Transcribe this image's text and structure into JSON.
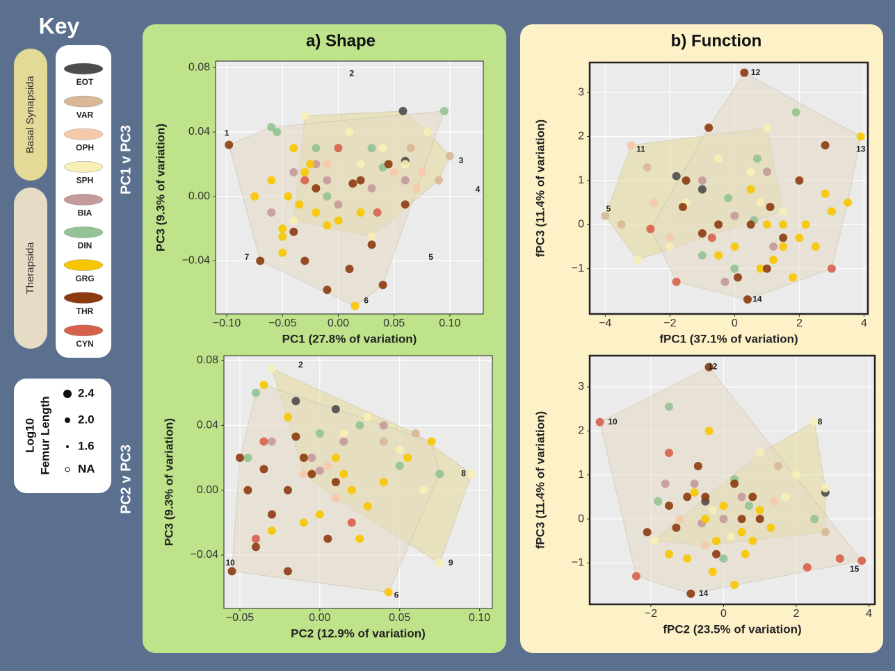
{
  "key": {
    "title": "Key",
    "clades": [
      {
        "name": "Basal Synapsida",
        "color": "#e3da98",
        "members": [
          "EOT",
          "VAR",
          "OPH",
          "SPH"
        ]
      },
      {
        "name": "Therapsida",
        "color": "#e6dbc4",
        "members": [
          "BIA",
          "DIN",
          "GRG",
          "THR",
          "CYN"
        ]
      }
    ],
    "groups": [
      {
        "name": "EOT",
        "color": "#4d4d4d"
      },
      {
        "name": "VAR",
        "color": "#d8b896"
      },
      {
        "name": "OPH",
        "color": "#f6c9ab"
      },
      {
        "name": "SPH",
        "color": "#f7efb5"
      },
      {
        "name": "BIA",
        "color": "#c49a9a"
      },
      {
        "name": "DIN",
        "color": "#93c294"
      },
      {
        "name": "GRG",
        "color": "#f7c600"
      },
      {
        "name": "THR",
        "color": "#8c3b10"
      },
      {
        "name": "CYN",
        "color": "#d7604b"
      }
    ],
    "size_title": [
      "Log10",
      "Femur Length"
    ],
    "sizes": [
      2.4,
      {
        "value": 2,
        "label": "2.0"
      },
      1.6
    ],
    "size_na": "NA"
  },
  "rows": [
    "PC1 v PC3",
    "PC2 v PC3"
  ],
  "panels": [
    {
      "title": "a) Shape"
    },
    {
      "title": "b) Function"
    }
  ],
  "chart_data": [
    {
      "type": "scatter",
      "xlabel": "PC1 (27.8% of variation)",
      "ylabel": "PC3 (9.3% of variation)",
      "xlim": [
        -0.11,
        0.13
      ],
      "ylim": [
        -0.073,
        0.084
      ],
      "grid": true,
      "xticks": [
        {
          "value": -0.1,
          "label": "−0.10"
        },
        {
          "value": -0.05,
          "label": "−0.05"
        },
        {
          "value": 0,
          "label": "0.00"
        },
        {
          "value": 0.05,
          "label": "0.05"
        },
        {
          "value": 0.1,
          "label": "0.10"
        }
      ],
      "yticks": [
        {
          "value": -0.04,
          "label": "−0.04"
        },
        {
          "value": 0,
          "label": "0.00"
        },
        {
          "value": 0.04,
          "label": "0.04"
        },
        {
          "value": 0.08,
          "label": "0.08"
        }
      ],
      "series": [
        {
          "name": "EOT",
          "color": "#4d4d4d",
          "x": [
            0.06,
            0.058
          ],
          "y": [
            0.022,
            0.053
          ]
        },
        {
          "name": "VAR",
          "color": "#d8b896",
          "x": [
            0.09,
            0.1,
            0.065
          ],
          "y": [
            0.01,
            0.025,
            0.03
          ]
        },
        {
          "name": "OPH",
          "color": "#f6c9ab",
          "x": [
            0.07,
            0.075,
            0.05,
            -0.01
          ],
          "y": [
            0.005,
            0.015,
            0.015,
            0.02
          ]
        },
        {
          "name": "SPH",
          "color": "#f7efb5",
          "x": [
            0.01,
            -0.03,
            0.02,
            0.06,
            0.04,
            -0.04,
            0.08,
            0.03
          ],
          "y": [
            0.04,
            0.05,
            0.02,
            0.02,
            0.03,
            -0.015,
            0.04,
            -0.025
          ]
        },
        {
          "name": "BIA",
          "color": "#c49a9a",
          "x": [
            -0.04,
            -0.02,
            0,
            0.03,
            -0.06,
            -0.01,
            0.06
          ],
          "y": [
            0.015,
            0.02,
            -0.005,
            0.005,
            -0.01,
            0.01,
            0.01
          ]
        },
        {
          "name": "DIN",
          "color": "#93c294",
          "x": [
            -0.055,
            -0.02,
            -0.01,
            0.03,
            0.04,
            0.095,
            -0.06
          ],
          "y": [
            0.04,
            0.03,
            0,
            0.03,
            0.018,
            0.053,
            0.043
          ]
        },
        {
          "name": "GRG",
          "color": "#f7c600",
          "x": [
            -0.06,
            -0.05,
            -0.045,
            -0.03,
            -0.02,
            -0.01,
            -0.05,
            -0.04,
            -0.075,
            -0.025,
            0,
            0.02,
            0.015,
            -0.035,
            -0.05
          ],
          "y": [
            0.01,
            -0.02,
            0,
            0.015,
            -0.01,
            -0.018,
            -0.035,
            0.03,
            0,
            0.02,
            -0.015,
            -0.01,
            -0.068,
            -0.005,
            -0.025
          ]
        },
        {
          "name": "THR",
          "color": "#8c3b10",
          "x": [
            -0.098,
            -0.07,
            -0.03,
            -0.04,
            -0.02,
            0.02,
            0.03,
            0.01,
            0.04,
            -0.01,
            0.045,
            0.06,
            0.013
          ],
          "y": [
            0.032,
            -0.04,
            -0.04,
            -0.022,
            0.005,
            0.01,
            -0.03,
            -0.045,
            -0.055,
            -0.058,
            0.02,
            -0.005,
            0.008
          ]
        },
        {
          "name": "CYN",
          "color": "#d7604b",
          "x": [
            -0.03,
            0,
            0.035
          ],
          "y": [
            0.01,
            0.03,
            -0.01
          ]
        }
      ],
      "annotations": [
        {
          "label": "1",
          "x": -0.1,
          "y": 0.039
        },
        {
          "label": "2",
          "x": 0.012,
          "y": 0.076
        },
        {
          "label": "3",
          "x": 0.11,
          "y": 0.022
        },
        {
          "label": "4",
          "x": 0.125,
          "y": 0.004
        },
        {
          "label": "5",
          "x": 0.083,
          "y": -0.038
        },
        {
          "label": "6",
          "x": 0.025,
          "y": -0.065
        },
        {
          "label": "7",
          "x": -0.082,
          "y": -0.038
        }
      ]
    },
    {
      "type": "scatter",
      "xlabel": "PC2 (12.9% of variation)",
      "ylabel": "PC3 (9.3% of variation)",
      "xlim": [
        -0.06,
        0.108
      ],
      "ylim": [
        -0.073,
        0.083
      ],
      "grid": true,
      "xticks": [
        {
          "value": -0.05,
          "label": "−0.05"
        },
        {
          "value": 0,
          "label": "0.00"
        },
        {
          "value": 0.05,
          "label": "0.05"
        },
        {
          "value": 0.1,
          "label": "0.10"
        }
      ],
      "yticks": [
        {
          "value": -0.04,
          "label": "−0.04"
        },
        {
          "value": 0,
          "label": "0.00"
        },
        {
          "value": 0.04,
          "label": "0.04"
        },
        {
          "value": 0.08,
          "label": "0.08"
        }
      ],
      "series": [
        {
          "name": "EOT",
          "color": "#4d4d4d",
          "x": [
            -0.015,
            0.01
          ],
          "y": [
            0.055,
            0.05
          ]
        },
        {
          "name": "VAR",
          "color": "#d8b896",
          "x": [
            0.04,
            0.06
          ],
          "y": [
            0.03,
            0.035
          ]
        },
        {
          "name": "OPH",
          "color": "#f6c9ab",
          "x": [
            -0.01,
            0.005,
            0.01
          ],
          "y": [
            0.01,
            0.015,
            -0.005
          ]
        },
        {
          "name": "SPH",
          "color": "#f7efb5",
          "x": [
            -0.03,
            0.015,
            0.05,
            0.065,
            0.095,
            0.075,
            0.03
          ],
          "y": [
            0.075,
            0.035,
            0.025,
            0,
            0.01,
            -0.045,
            0.045
          ]
        },
        {
          "name": "BIA",
          "color": "#c49a9a",
          "x": [
            -0.03,
            -0.005,
            0,
            0.015,
            0.04
          ],
          "y": [
            0.03,
            0.02,
            0.012,
            0.03,
            0.04
          ]
        },
        {
          "name": "DIN",
          "color": "#93c294",
          "x": [
            -0.04,
            -0.045,
            0,
            0.025,
            0.05,
            0.075
          ],
          "y": [
            0.06,
            0.02,
            0.035,
            0.04,
            0.015,
            0.01
          ]
        },
        {
          "name": "GRG",
          "color": "#f7c600",
          "x": [
            -0.035,
            -0.02,
            0.01,
            0.02,
            0.03,
            -0.01,
            0,
            0.025,
            0.043,
            0.04,
            -0.03,
            0.015,
            0.055,
            0.07
          ],
          "y": [
            0.065,
            0.045,
            0.02,
            0,
            -0.01,
            -0.02,
            -0.015,
            -0.03,
            -0.063,
            0.005,
            -0.025,
            0.01,
            0.02,
            0.03
          ]
        },
        {
          "name": "THR",
          "color": "#8c3b10",
          "x": [
            -0.055,
            -0.04,
            -0.03,
            -0.02,
            -0.01,
            -0.05,
            -0.045,
            -0.035,
            -0.015,
            -0.005,
            0.005,
            -0.02,
            0.01
          ],
          "y": [
            -0.05,
            -0.035,
            -0.015,
            0,
            0.02,
            0.02,
            0,
            0.013,
            0.033,
            0.01,
            -0.03,
            -0.05,
            0.005
          ]
        },
        {
          "name": "CYN",
          "color": "#d7604b",
          "x": [
            -0.035,
            -0.04,
            0.02
          ],
          "y": [
            0.03,
            -0.03,
            -0.02
          ]
        }
      ],
      "annotations": [
        {
          "label": "2",
          "x": -0.012,
          "y": 0.077
        },
        {
          "label": "6",
          "x": 0.048,
          "y": -0.065
        },
        {
          "label": "8",
          "x": 0.09,
          "y": 0.01
        },
        {
          "label": "9",
          "x": 0.082,
          "y": -0.045
        },
        {
          "label": "10",
          "x": -0.056,
          "y": -0.045
        }
      ]
    },
    {
      "type": "scatter",
      "xlabel": "fPC1 (37.1% of variation)",
      "ylabel": "fPC3 (11.4% of variation)",
      "xlim": [
        -4.48,
        4.12
      ],
      "ylim": [
        -2.03,
        3.68
      ],
      "grid": true,
      "xticks": [
        {
          "value": -4,
          "label": "−4"
        },
        {
          "value": -2,
          "label": "−2"
        },
        0,
        2,
        4
      ],
      "yticks": [
        {
          "value": -1,
          "label": "−1"
        },
        0,
        1,
        2,
        3
      ],
      "series": [
        {
          "name": "EOT",
          "color": "#4d4d4d",
          "x": [
            -1.8,
            -1
          ],
          "y": [
            1.1,
            0.8
          ]
        },
        {
          "name": "VAR",
          "color": "#d8b896",
          "x": [
            -4,
            -3.5,
            -2.7
          ],
          "y": [
            0.2,
            0,
            1.3
          ]
        },
        {
          "name": "OPH",
          "color": "#f6c9ab",
          "x": [
            -3.2,
            -2.5,
            -2
          ],
          "y": [
            1.8,
            0.5,
            -0.3
          ]
        },
        {
          "name": "SPH",
          "color": "#f7efb5",
          "x": [
            -0.5,
            0.5,
            -1.5,
            1,
            -2,
            0.8,
            -3,
            1.5
          ],
          "y": [
            1.5,
            1.2,
            0.5,
            2.2,
            -0.5,
            0.5,
            -0.8,
            0.3
          ]
        },
        {
          "name": "BIA",
          "color": "#c49a9a",
          "x": [
            -1,
            1,
            0,
            1.2,
            -0.3
          ],
          "y": [
            1,
            1.2,
            0.2,
            -0.5,
            -1.3
          ]
        },
        {
          "name": "DIN",
          "color": "#93c294",
          "x": [
            1.9,
            0.7,
            -0.2,
            0.6,
            0,
            -1
          ],
          "y": [
            2.55,
            1.5,
            0.6,
            0.1,
            -1,
            -0.7
          ]
        },
        {
          "name": "GRG",
          "color": "#f7c600",
          "x": [
            0.5,
            1,
            1.5,
            2,
            2.5,
            3,
            1.8,
            0,
            -0.5,
            1.2,
            2.8,
            3.5,
            3.9,
            0.8,
            1.5,
            2.2
          ],
          "y": [
            0.8,
            0,
            -0.5,
            -0.3,
            -0.5,
            0.3,
            -1.2,
            -0.5,
            -0.7,
            -0.8,
            0.7,
            0.5,
            2,
            -1,
            0,
            0
          ]
        },
        {
          "name": "THR",
          "color": "#8c3b10",
          "x": [
            0.3,
            -0.8,
            2.8,
            -1.5,
            1.1,
            0.4,
            1,
            -0.5,
            0.5,
            2,
            1.5,
            0.1,
            -1,
            -1.6
          ],
          "y": [
            3.45,
            2.2,
            1.8,
            1,
            0.4,
            -1.7,
            -1,
            0,
            0,
            1,
            -0.3,
            -1.2,
            -0.2,
            0.4
          ]
        },
        {
          "name": "CYN",
          "color": "#d7604b",
          "x": [
            -2.6,
            -1.8,
            3,
            -0.7
          ],
          "y": [
            -0.1,
            -1.3,
            -1,
            -0.3
          ]
        }
      ],
      "annotations": [
        {
          "label": "12",
          "x": 0.65,
          "y": 3.45
        },
        {
          "label": "11",
          "x": -2.9,
          "y": 1.7
        },
        {
          "label": "13",
          "x": 3.9,
          "y": 1.7
        },
        {
          "label": "5",
          "x": -3.9,
          "y": 0.35
        },
        {
          "label": "14",
          "x": 0.7,
          "y": -1.7
        }
      ]
    },
    {
      "type": "scatter",
      "xlabel": "fPC2 (23.5% of variation)",
      "ylabel": "fPC3 (11.4% of variation)",
      "xlim": [
        -3.68,
        4.16
      ],
      "ylim": [
        -1.94,
        3.71
      ],
      "grid": true,
      "xticks": [
        {
          "value": -2,
          "label": "−2"
        },
        0,
        2,
        4
      ],
      "yticks": [
        {
          "value": -1,
          "label": "−1"
        },
        0,
        1,
        2,
        3
      ],
      "series": [
        {
          "name": "EOT",
          "color": "#4d4d4d",
          "x": [
            2.8,
            -0.5
          ],
          "y": [
            0.6,
            0.4
          ]
        },
        {
          "name": "VAR",
          "color": "#d8b896",
          "x": [
            1.5,
            2.8
          ],
          "y": [
            1.2,
            -0.3
          ]
        },
        {
          "name": "OPH",
          "color": "#f6c9ab",
          "x": [
            -1.2,
            1.4,
            -0.5
          ],
          "y": [
            0,
            0.4,
            -0.6
          ]
        },
        {
          "name": "SPH",
          "color": "#f7efb5",
          "x": [
            2.5,
            1,
            2,
            -1.9,
            2.8,
            0.2,
            1.7,
            -0.3
          ],
          "y": [
            2.2,
            1.5,
            1,
            -0.5,
            0.7,
            -0.4,
            0.5,
            0.2
          ]
        },
        {
          "name": "BIA",
          "color": "#c49a9a",
          "x": [
            -1.6,
            -0.8,
            0,
            0.5,
            -0.6
          ],
          "y": [
            0.8,
            0.8,
            0,
            0.5,
            -0.1
          ]
        },
        {
          "name": "DIN",
          "color": "#93c294",
          "x": [
            -1.5,
            0.3,
            -1.8,
            0,
            2.5,
            0.7
          ],
          "y": [
            2.55,
            0.9,
            0.4,
            -0.9,
            0,
            0.3
          ]
        },
        {
          "name": "GRG",
          "color": "#f7c600",
          "x": [
            -0.4,
            -0.8,
            -0.5,
            -0.2,
            0.5,
            0.8,
            1,
            -1,
            0.3,
            0.6,
            -1.5,
            1.3,
            -0.3,
            0
          ],
          "y": [
            2,
            0.6,
            0,
            -0.5,
            -0.3,
            -0.5,
            0.2,
            -0.9,
            -1.5,
            -0.8,
            -0.8,
            -0.2,
            -1.2,
            0.3
          ]
        },
        {
          "name": "THR",
          "color": "#8c3b10",
          "x": [
            -0.4,
            -0.9,
            -1,
            -0.5,
            0.5,
            -1.3,
            -0.2,
            0.3,
            1,
            -2.1,
            0.8,
            -0.7,
            -1.5
          ],
          "y": [
            3.45,
            -1.7,
            0.5,
            0.5,
            0,
            -0.2,
            -0.8,
            0.8,
            0,
            -0.3,
            0.5,
            1.2,
            0.3
          ]
        },
        {
          "name": "CYN",
          "color": "#d7604b",
          "x": [
            -3.4,
            -2.4,
            3.2,
            3.8,
            2.3,
            -1.5
          ],
          "y": [
            2.2,
            -1.3,
            -0.9,
            -0.95,
            -1.1,
            1.5
          ]
        }
      ],
      "annotations": [
        {
          "label": "12",
          "x": -0.3,
          "y": 3.45
        },
        {
          "label": "10",
          "x": -3.05,
          "y": 2.2
        },
        {
          "label": "8",
          "x": 2.65,
          "y": 2.2
        },
        {
          "label": "15",
          "x": 3.6,
          "y": -1.15
        },
        {
          "label": "14",
          "x": -0.55,
          "y": -1.7
        }
      ]
    }
  ]
}
